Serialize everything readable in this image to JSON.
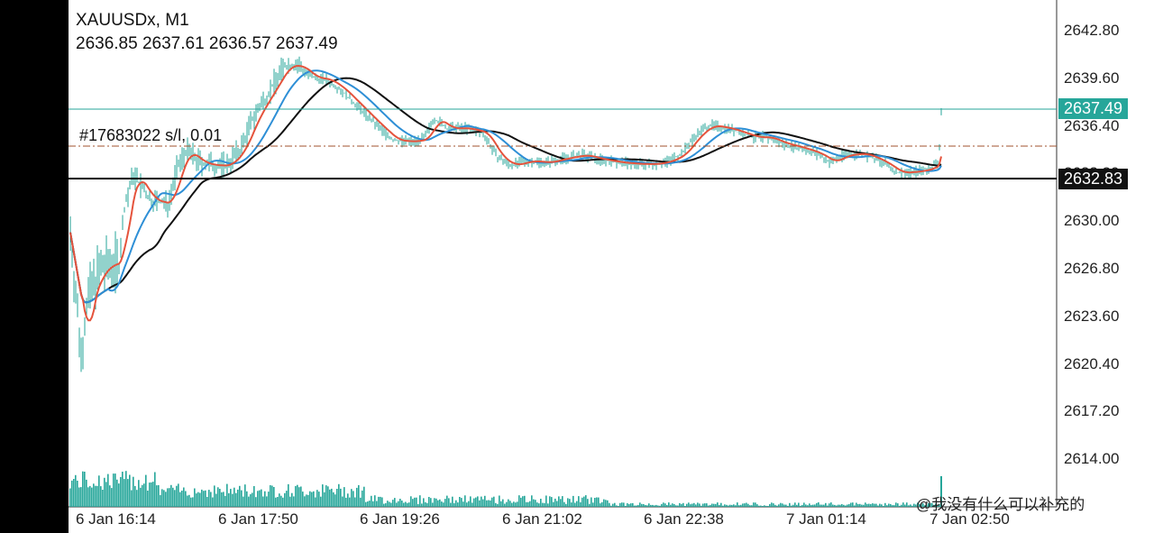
{
  "header": {
    "symbol": "XAUUSDx, M1",
    "ohlc": "2636.85 2637.61 2636.57 2637.49"
  },
  "order_line_label": "#17683022 s/l, 0.01",
  "current_price": {
    "value": "2637.49",
    "color": "#26a69a"
  },
  "stop_price": {
    "value": "2632.83",
    "color": "#000000"
  },
  "price_axis": [
    "2642.80",
    "2639.60",
    "2636.40",
    "2633.20",
    "2630.00",
    "2626.80",
    "2623.60",
    "2620.40",
    "2617.20",
    "2614.00"
  ],
  "time_axis": [
    "6 Jan 16:14",
    "6 Jan 17:50",
    "6 Jan 19:26",
    "6 Jan 21:02",
    "6 Jan 22:38",
    "7 Jan 01:14",
    "7 Jan 02:50"
  ],
  "watermark": "@我没有什么可以补充的",
  "colors": {
    "candle": "#26a69a",
    "ma_fast": "#e5533c",
    "ma_mid": "#2e8fd6",
    "ma_slow": "#111111",
    "order_line": "#a0522d",
    "volume": "#26a69a"
  }
}
